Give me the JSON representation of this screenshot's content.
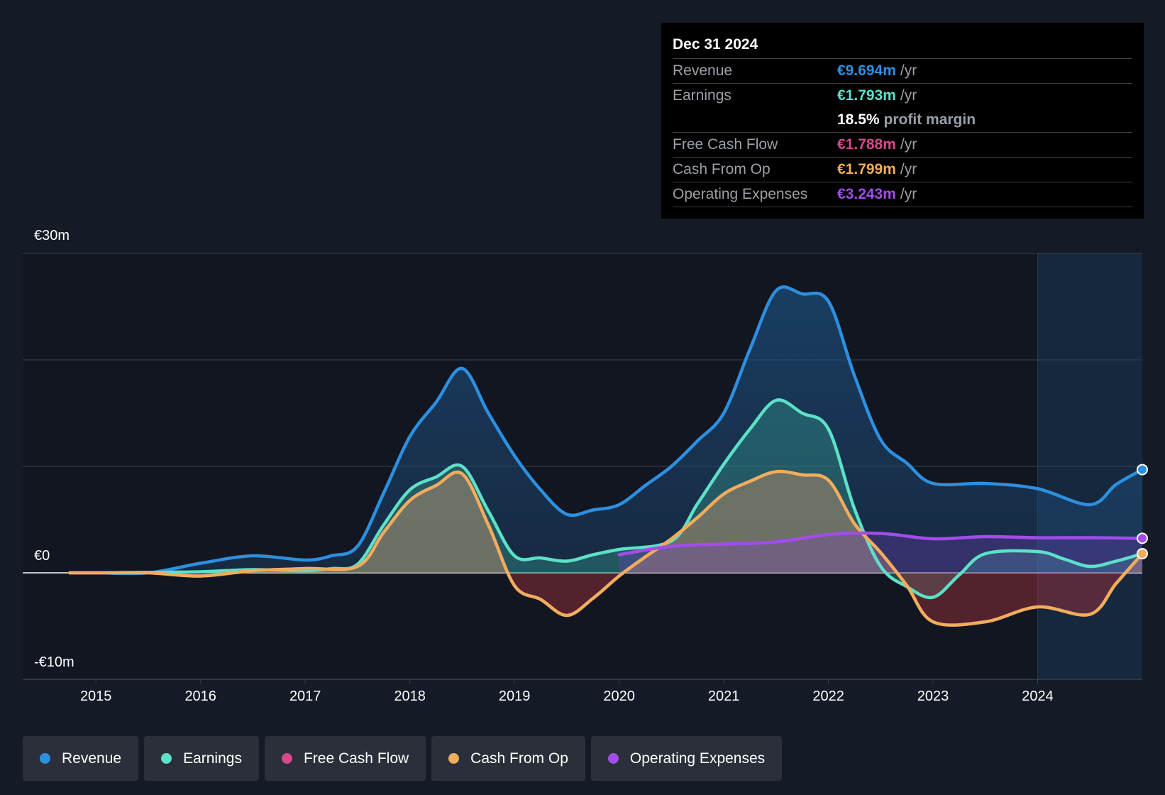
{
  "tooltip": {
    "date": "Dec 31 2024",
    "rows": [
      {
        "label": "Revenue",
        "value": "€9.694m",
        "unit": "/yr",
        "color": "#2d8fe0"
      },
      {
        "label": "Earnings",
        "value": "€1.793m",
        "unit": "/yr",
        "color": "#5de0c8"
      },
      {
        "label": "",
        "value": "18.5%",
        "unit": "profit margin",
        "color": "#ffffff"
      },
      {
        "label": "Free Cash Flow",
        "value": "€1.788m",
        "unit": "/yr",
        "color": "#d6498a"
      },
      {
        "label": "Cash From Op",
        "value": "€1.799m",
        "unit": "/yr",
        "color": "#f0ad5a"
      },
      {
        "label": "Operating Expenses",
        "value": "€3.243m",
        "unit": "/yr",
        "color": "#a24de8"
      }
    ]
  },
  "chart_data": {
    "type": "area",
    "title": "",
    "ylim": [
      -10,
      30
    ],
    "xlim": [
      2014.3,
      2025.0
    ],
    "y_tick_labels": [
      "€30m",
      "€0",
      "-€10m"
    ],
    "x_ticks": [
      "2015",
      "2016",
      "2017",
      "2018",
      "2019",
      "2020",
      "2021",
      "2022",
      "2023",
      "2024"
    ],
    "forecast_start": 2024.0,
    "series": [
      {
        "name": "Revenue",
        "color": "#2d8fe0",
        "points": [
          [
            2014.75,
            0
          ],
          [
            2015.0,
            0
          ],
          [
            2015.5,
            0
          ],
          [
            2016.0,
            0.9
          ],
          [
            2016.5,
            1.6
          ],
          [
            2017.0,
            1.2
          ],
          [
            2017.25,
            1.6
          ],
          [
            2017.5,
            2.5
          ],
          [
            2017.75,
            7.5
          ],
          [
            2018.0,
            12.8
          ],
          [
            2018.25,
            16.0
          ],
          [
            2018.5,
            19.2
          ],
          [
            2018.75,
            15.0
          ],
          [
            2019.0,
            11.0
          ],
          [
            2019.25,
            7.8
          ],
          [
            2019.5,
            5.5
          ],
          [
            2019.75,
            5.9
          ],
          [
            2020.0,
            6.4
          ],
          [
            2020.25,
            8.2
          ],
          [
            2020.5,
            10.0
          ],
          [
            2020.75,
            12.4
          ],
          [
            2021.0,
            15.0
          ],
          [
            2021.25,
            21.0
          ],
          [
            2021.5,
            26.5
          ],
          [
            2021.75,
            26.2
          ],
          [
            2022.0,
            25.5
          ],
          [
            2022.25,
            18.5
          ],
          [
            2022.5,
            12.5
          ],
          [
            2022.75,
            10.3
          ],
          [
            2023.0,
            8.4
          ],
          [
            2023.5,
            8.4
          ],
          [
            2024.0,
            7.9
          ],
          [
            2024.5,
            6.4
          ],
          [
            2024.75,
            8.3
          ],
          [
            2025.0,
            9.694
          ]
        ]
      },
      {
        "name": "Earnings",
        "color": "#5de0c8",
        "points": [
          [
            2014.75,
            0
          ],
          [
            2015.0,
            0
          ],
          [
            2015.5,
            0.05
          ],
          [
            2016.0,
            0.1
          ],
          [
            2016.5,
            0.3
          ],
          [
            2017.0,
            0.2
          ],
          [
            2017.25,
            0.4
          ],
          [
            2017.5,
            0.8
          ],
          [
            2017.75,
            4.5
          ],
          [
            2018.0,
            7.8
          ],
          [
            2018.25,
            9.0
          ],
          [
            2018.5,
            10.0
          ],
          [
            2018.75,
            5.8
          ],
          [
            2019.0,
            1.6
          ],
          [
            2019.25,
            1.4
          ],
          [
            2019.5,
            1.1
          ],
          [
            2019.75,
            1.7
          ],
          [
            2020.0,
            2.2
          ],
          [
            2020.5,
            3.0
          ],
          [
            2020.75,
            6.5
          ],
          [
            2021.0,
            10.2
          ],
          [
            2021.25,
            13.5
          ],
          [
            2021.5,
            16.2
          ],
          [
            2021.75,
            15.0
          ],
          [
            2022.0,
            13.5
          ],
          [
            2022.25,
            6.0
          ],
          [
            2022.5,
            0.6
          ],
          [
            2022.75,
            -1.3
          ],
          [
            2023.0,
            -2.3
          ],
          [
            2023.25,
            -0.2
          ],
          [
            2023.5,
            1.8
          ],
          [
            2024.0,
            2.0
          ],
          [
            2024.25,
            1.3
          ],
          [
            2024.5,
            0.6
          ],
          [
            2024.75,
            1.1
          ],
          [
            2025.0,
            1.793
          ]
        ]
      },
      {
        "name": "Free Cash Flow",
        "color": "#d6498a",
        "points": [
          [
            2014.75,
            0
          ],
          [
            2015.0,
            0
          ],
          [
            2015.5,
            0
          ],
          [
            2016.0,
            -0.3
          ],
          [
            2016.5,
            0.2
          ],
          [
            2017.0,
            0.4
          ],
          [
            2017.5,
            0.6
          ],
          [
            2017.75,
            3.8
          ],
          [
            2018.0,
            6.8
          ],
          [
            2018.25,
            8.2
          ],
          [
            2018.5,
            9.3
          ],
          [
            2018.75,
            4.5
          ],
          [
            2019.0,
            -1.2
          ],
          [
            2019.25,
            -2.5
          ],
          [
            2019.5,
            -4.0
          ],
          [
            2019.75,
            -2.4
          ],
          [
            2020.0,
            -0.3
          ],
          [
            2020.25,
            1.5
          ],
          [
            2020.5,
            3.2
          ],
          [
            2020.75,
            5.2
          ],
          [
            2021.0,
            7.4
          ],
          [
            2021.25,
            8.6
          ],
          [
            2021.5,
            9.5
          ],
          [
            2021.75,
            9.2
          ],
          [
            2022.0,
            8.7
          ],
          [
            2022.25,
            4.6
          ],
          [
            2022.5,
            1.9
          ],
          [
            2022.75,
            -1.2
          ],
          [
            2023.0,
            -4.6
          ],
          [
            2023.5,
            -4.6
          ],
          [
            2024.0,
            -3.2
          ],
          [
            2024.5,
            -3.9
          ],
          [
            2024.75,
            -1.0
          ],
          [
            2025.0,
            1.788
          ]
        ]
      },
      {
        "name": "Cash From Op",
        "color": "#f0ad5a",
        "points": [
          [
            2014.75,
            0
          ],
          [
            2015.0,
            0
          ],
          [
            2015.5,
            0
          ],
          [
            2016.0,
            -0.3
          ],
          [
            2016.5,
            0.2
          ],
          [
            2017.0,
            0.4
          ],
          [
            2017.5,
            0.6
          ],
          [
            2017.75,
            3.8
          ],
          [
            2018.0,
            6.8
          ],
          [
            2018.25,
            8.2
          ],
          [
            2018.5,
            9.3
          ],
          [
            2018.75,
            4.5
          ],
          [
            2019.0,
            -1.2
          ],
          [
            2019.25,
            -2.5
          ],
          [
            2019.5,
            -4.0
          ],
          [
            2019.75,
            -2.4
          ],
          [
            2020.0,
            -0.3
          ],
          [
            2020.25,
            1.5
          ],
          [
            2020.5,
            3.2
          ],
          [
            2020.75,
            5.2
          ],
          [
            2021.0,
            7.4
          ],
          [
            2021.25,
            8.6
          ],
          [
            2021.5,
            9.5
          ],
          [
            2021.75,
            9.2
          ],
          [
            2022.0,
            8.7
          ],
          [
            2022.25,
            4.6
          ],
          [
            2022.5,
            1.9
          ],
          [
            2022.75,
            -1.2
          ],
          [
            2023.0,
            -4.6
          ],
          [
            2023.5,
            -4.6
          ],
          [
            2024.0,
            -3.2
          ],
          [
            2024.5,
            -3.9
          ],
          [
            2024.75,
            -1.0
          ],
          [
            2025.0,
            1.799
          ]
        ]
      },
      {
        "name": "Operating Expenses",
        "color": "#a24de8",
        "points": [
          [
            2020.0,
            1.7
          ],
          [
            2020.5,
            2.5
          ],
          [
            2021.0,
            2.7
          ],
          [
            2021.5,
            2.9
          ],
          [
            2022.0,
            3.6
          ],
          [
            2022.5,
            3.7
          ],
          [
            2023.0,
            3.2
          ],
          [
            2023.5,
            3.4
          ],
          [
            2024.0,
            3.3
          ],
          [
            2024.5,
            3.3
          ],
          [
            2025.0,
            3.243
          ]
        ]
      }
    ]
  },
  "legend": [
    "Revenue",
    "Earnings",
    "Free Cash Flow",
    "Cash From Op",
    "Operating Expenses"
  ]
}
